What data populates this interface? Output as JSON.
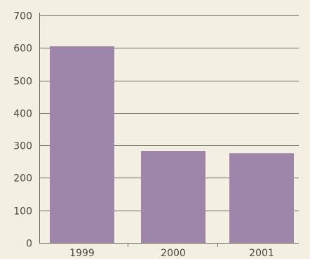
{
  "chart_data": {
    "type": "bar",
    "title": "",
    "xlabel": "",
    "ylabel": "",
    "categories": [
      "1999",
      "2000",
      "2001"
    ],
    "values": [
      605,
      283,
      276
    ],
    "ylim": [
      0,
      700
    ],
    "yticks": [
      "0",
      "100",
      "200",
      "300",
      "400",
      "500",
      "600",
      "700"
    ],
    "grid": true,
    "legend": "none",
    "colors": {
      "bar": "#9d86a8",
      "background": "#f3efe2",
      "grid": "#6f6a60",
      "text": "#4b4740"
    }
  }
}
